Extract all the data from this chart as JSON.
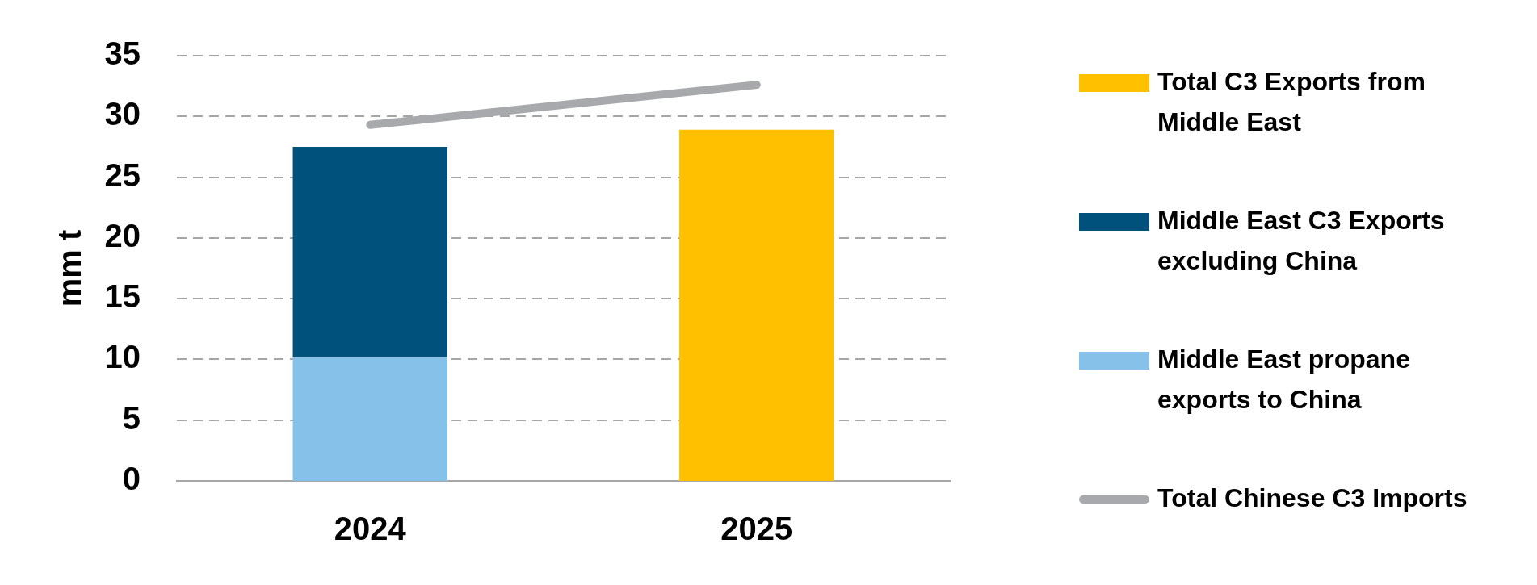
{
  "chart_data": {
    "type": "bar",
    "categories": [
      "2024",
      "2025"
    ],
    "ylabel": "mm t",
    "ylim": [
      0,
      35
    ],
    "yticks": [
      0,
      5,
      10,
      15,
      20,
      25,
      30,
      35
    ],
    "stacked": true,
    "grid": "y",
    "legend": "right",
    "series": [
      {
        "name": "Middle East propane exports to China",
        "color": "#85c1e9",
        "values": [
          10.2,
          null
        ]
      },
      {
        "name": "Middle East C3 Exports excluding China",
        "color": "#00527d",
        "values": [
          17.3,
          null
        ]
      },
      {
        "name": "Total C3 Exports from Middle East",
        "color": "#ffc000",
        "values": [
          null,
          28.9
        ]
      },
      {
        "name": "Total Chinese C3 Imports",
        "type": "line",
        "color": "#a7a9ac",
        "values": [
          29.3,
          32.6
        ]
      }
    ]
  }
}
